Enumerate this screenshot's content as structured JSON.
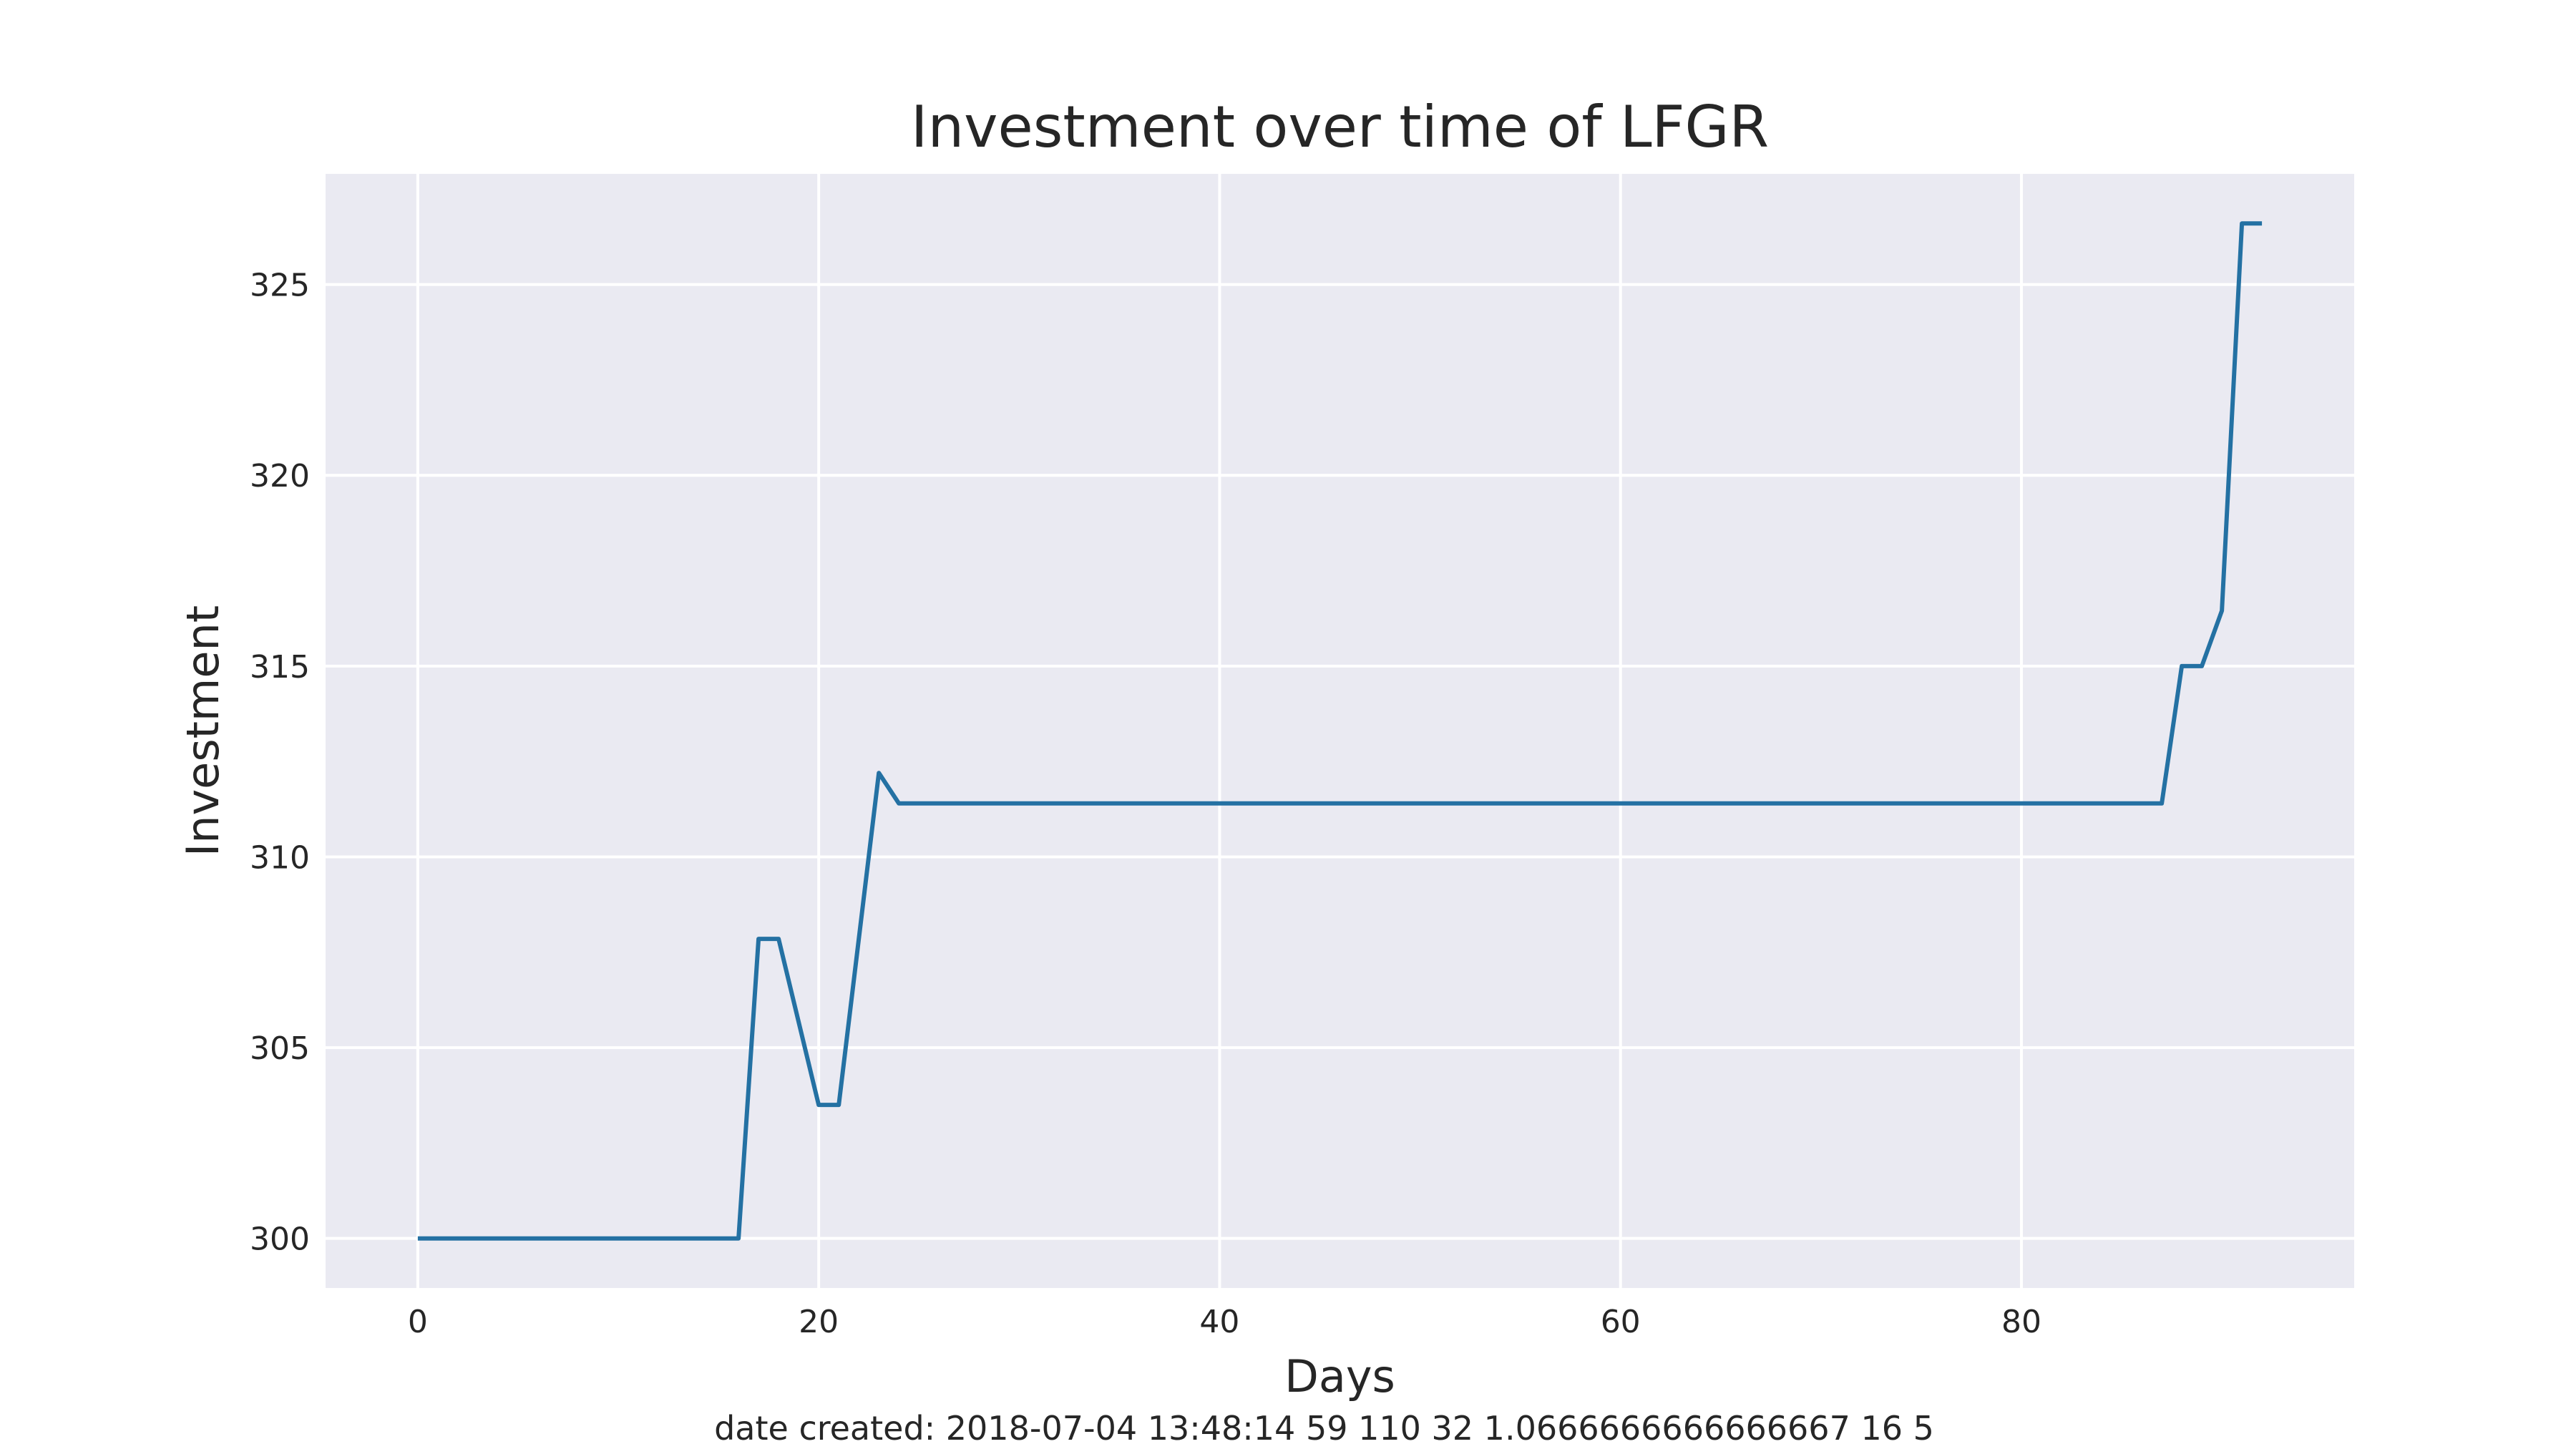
{
  "chart_data": {
    "type": "line",
    "title": "Investment over time of LFGR",
    "xlabel": "Days",
    "ylabel": "Investment",
    "footer": "date created: 2018-07-04 13:48:14 59 110 32 1.0666666666666667 16 5",
    "xlim": [
      -4.6,
      96.6
    ],
    "ylim": [
      298.7,
      327.9
    ],
    "xticks": [
      0,
      20,
      40,
      60,
      80
    ],
    "yticks": [
      300,
      305,
      310,
      315,
      320,
      325
    ],
    "grid": true,
    "colors": {
      "background": "#eaeaf2",
      "grid": "#ffffff",
      "line": "#2471a3",
      "text": "#262626"
    },
    "series": [
      {
        "x": [
          0,
          16,
          17,
          18,
          20,
          21,
          23,
          24,
          87,
          88,
          89,
          90,
          91,
          92
        ],
        "y": [
          300.0,
          300.0,
          307.85,
          307.85,
          303.5,
          303.5,
          312.2,
          311.4,
          311.4,
          315.0,
          315.0,
          316.45,
          326.6,
          326.6
        ]
      }
    ]
  }
}
